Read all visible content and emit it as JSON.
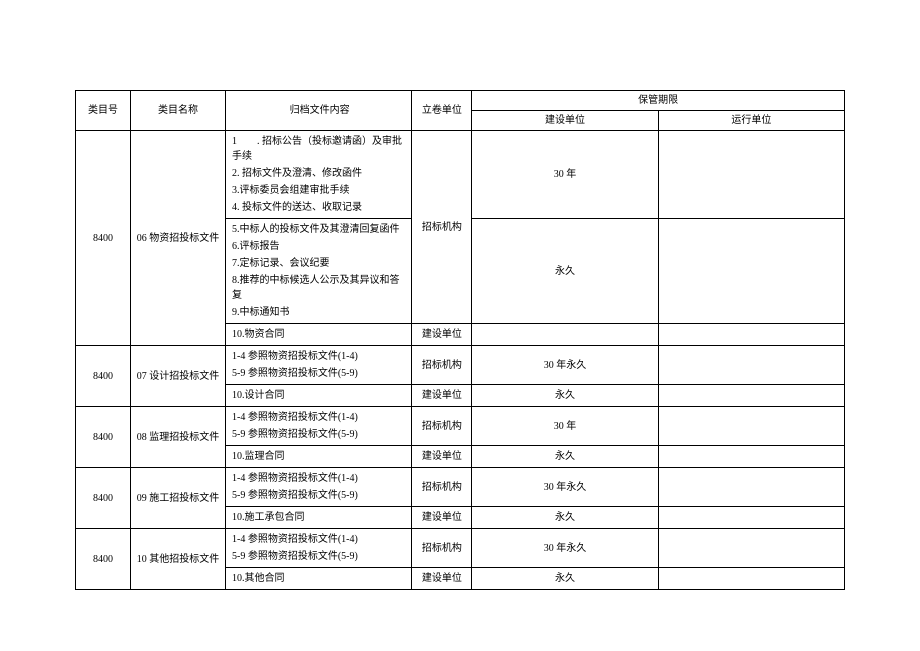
{
  "headers": {
    "col_id": "类目号",
    "col_name": "类目名称",
    "col_content": "归档文件内容",
    "col_unit": "立卷单位",
    "col_period_group": "保管期限",
    "col_period1": "建设单位",
    "col_period2": "运行单位"
  },
  "rows": [
    {
      "id": "8400",
      "name": "06 物资招投标文件",
      "blocks": [
        {
          "content": [
            "1　　. 招标公告（投标邀请函）及审批手续",
            "2. 招标文件及澄清、修改函件",
            "3.评标委员会组建审批手续",
            "4. 投标文件的送达、收取记录"
          ],
          "unit_span_start": true,
          "unit": "招标机构",
          "period1": "30 年",
          "period2": ""
        },
        {
          "content": [
            "5.中标人的投标文件及其澄清回复函件",
            "6.评标报告",
            "7.定标记录、会议纪要",
            "8.推荐的中标候选人公示及其异议和答复",
            "9.中标通知书"
          ],
          "period1": "永久",
          "period2": ""
        },
        {
          "content": [
            "10.物资合同"
          ],
          "unit": "建设单位",
          "period1": "",
          "period2": ""
        }
      ]
    },
    {
      "id": "8400",
      "name": "07 设计招投标文件",
      "blocks": [
        {
          "content": [
            "1-4 参照物资招投标文件(1-4)",
            "5-9 参照物资招投标文件(5-9)"
          ],
          "unit": "招标机构",
          "period1": "30 年永久",
          "period2": ""
        },
        {
          "content": [
            "10.设计合同"
          ],
          "unit": "建设单位",
          "period1": "永久",
          "period2": ""
        }
      ]
    },
    {
      "id": "8400",
      "name": "08 监理招投标文件",
      "blocks": [
        {
          "content": [
            "1-4 参照物资招投标文件(1-4)",
            "5-9 参照物资招投标文件(5-9)"
          ],
          "unit": "招标机构",
          "period1": "30 年",
          "period2": ""
        },
        {
          "content": [
            "10.监理合同"
          ],
          "unit": "建设单位",
          "period1": "永久",
          "period2": ""
        }
      ]
    },
    {
      "id": "8400",
      "name": "09 施工招投标文件",
      "blocks": [
        {
          "content": [
            "1-4 参照物资招投标文件(1-4)",
            "5-9 参照物资招投标文件(5-9)"
          ],
          "unit": "招标机构",
          "period1": "30 年永久",
          "period2": ""
        },
        {
          "content": [
            "10.施工承包合同"
          ],
          "unit": "建设单位",
          "period1": "永久",
          "period2": ""
        }
      ]
    },
    {
      "id": "8400",
      "name": "10 其他招投标文件",
      "blocks": [
        {
          "content": [
            "1-4 参照物资招投标文件(1-4)",
            "5-9 参照物资招投标文件(5-9)"
          ],
          "unit": "招标机构",
          "period1": "30 年永久",
          "period2": ""
        },
        {
          "content": [
            "10.其他合同"
          ],
          "unit": "建设单位",
          "period1": "永久",
          "period2": ""
        }
      ]
    }
  ]
}
